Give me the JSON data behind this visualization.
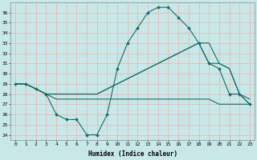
{
  "xlabel": "Humidex (Indice chaleur)",
  "background_color": "#c8e8e8",
  "grid_color": "#e8b8b8",
  "line_color": "#1a6b6b",
  "xlim": [
    -0.5,
    23.5
  ],
  "ylim": [
    23.5,
    37.0
  ],
  "xticks": [
    0,
    1,
    2,
    3,
    4,
    5,
    6,
    7,
    8,
    9,
    10,
    11,
    12,
    13,
    14,
    15,
    16,
    17,
    18,
    19,
    20,
    21,
    22,
    23
  ],
  "yticks": [
    24,
    25,
    26,
    27,
    28,
    29,
    30,
    31,
    32,
    33,
    34,
    35,
    36
  ],
  "curve1_x": [
    0,
    1,
    2,
    3,
    4,
    5,
    6,
    7,
    8,
    9,
    10,
    11,
    12,
    13,
    14,
    15,
    16,
    17,
    18,
    19,
    20,
    21,
    22,
    23
  ],
  "curve1_y": [
    29.0,
    29.0,
    28.5,
    28.0,
    26.0,
    25.5,
    25.5,
    24.0,
    24.0,
    26.0,
    30.5,
    33.0,
    34.5,
    36.0,
    36.5,
    36.5,
    35.5,
    34.5,
    33.0,
    31.0,
    30.5,
    28.0,
    28.0,
    27.0
  ],
  "curve2_x": [
    0,
    1,
    2,
    3,
    4,
    5,
    6,
    7,
    8,
    9,
    10,
    11,
    12,
    13,
    14,
    15,
    16,
    17,
    18,
    19,
    20,
    21,
    22,
    23
  ],
  "curve2_y": [
    29.0,
    29.0,
    28.5,
    28.0,
    27.5,
    27.5,
    27.5,
    27.5,
    27.5,
    27.5,
    27.5,
    27.5,
    27.5,
    27.5,
    27.5,
    27.5,
    27.5,
    27.5,
    27.5,
    27.5,
    27.0,
    27.0,
    27.0,
    27.0
  ],
  "curve3_x": [
    0,
    1,
    2,
    3,
    4,
    5,
    6,
    7,
    8,
    9,
    10,
    11,
    12,
    13,
    14,
    15,
    16,
    17,
    18,
    19,
    20,
    21,
    22,
    23
  ],
  "curve3_y": [
    29.0,
    29.0,
    28.5,
    28.0,
    28.0,
    28.0,
    28.0,
    28.0,
    28.0,
    28.5,
    29.0,
    29.5,
    30.0,
    30.5,
    31.0,
    31.5,
    32.0,
    32.5,
    33.0,
    33.0,
    31.0,
    30.5,
    28.0,
    27.5
  ],
  "curve4_x": [
    0,
    1,
    2,
    3,
    4,
    5,
    6,
    7,
    8,
    9,
    10,
    11,
    12,
    13,
    14,
    15,
    16,
    17,
    18,
    19,
    20,
    21,
    22,
    23
  ],
  "curve4_y": [
    29.0,
    29.0,
    28.5,
    28.0,
    28.0,
    28.0,
    28.0,
    28.0,
    28.0,
    28.5,
    29.0,
    29.5,
    30.0,
    30.5,
    31.0,
    31.5,
    32.0,
    32.5,
    33.0,
    31.0,
    31.0,
    30.5,
    28.0,
    27.0
  ]
}
